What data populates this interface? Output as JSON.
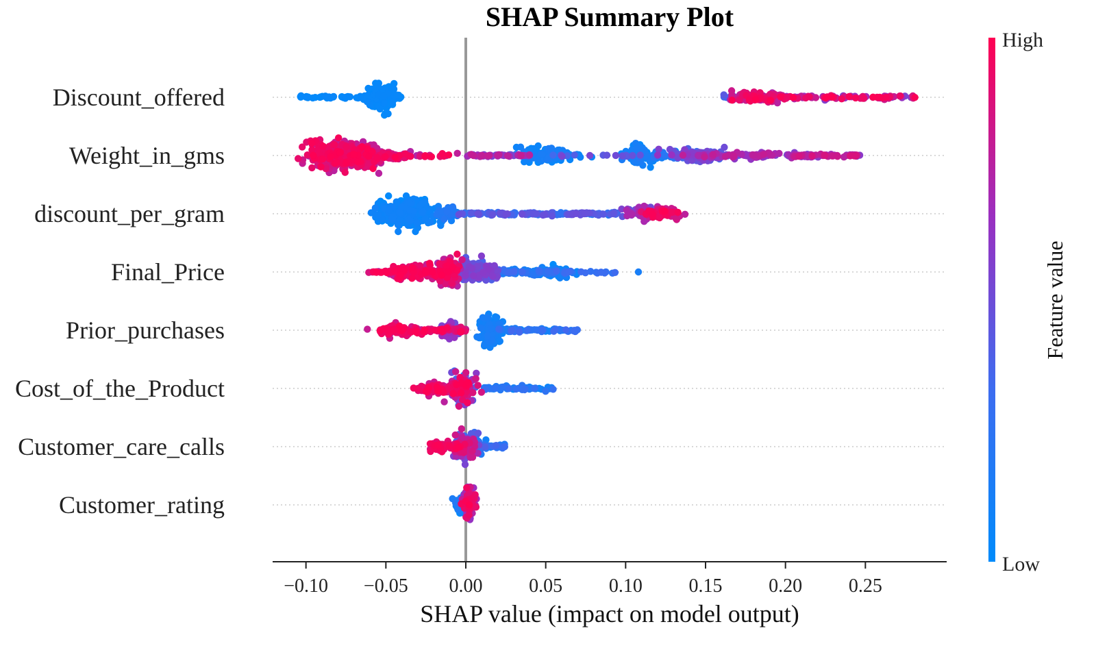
{
  "chart_data": {
    "type": "scatter",
    "subtype": "shap-beeswarm",
    "title": "SHAP Summary Plot",
    "xlabel": "SHAP value (impact on model output)",
    "xlim": [
      -0.12,
      0.3
    ],
    "xticks": [
      -0.1,
      -0.05,
      0.0,
      0.05,
      0.1,
      0.15,
      0.2,
      0.25
    ],
    "xtick_labels": [
      "−0.10",
      "−0.05",
      "0.00",
      "0.05",
      "0.10",
      "0.15",
      "0.20",
      "0.25"
    ],
    "reference_line_x": 0.0,
    "colorbar": {
      "title": "Feature value",
      "high_label": "High",
      "low_label": "Low",
      "high_color": "#ff0052",
      "low_color": "#008bfb"
    },
    "features": [
      {
        "name": "Discount_offered",
        "clusters": [
          {
            "x": -0.104,
            "x2": -0.058,
            "count": 45,
            "spread": 0.08,
            "fv": [
              0.0,
              0.05
            ]
          },
          {
            "x": -0.053,
            "sd": 0.005,
            "count": 130,
            "spread": 1.0,
            "fv": [
              0.0,
              0.05
            ]
          },
          {
            "x": -0.045,
            "x2": -0.04,
            "count": 8,
            "spread": 0.15,
            "fv": [
              0.0,
              0.05
            ]
          },
          {
            "x": 0.161,
            "x2": 0.174,
            "count": 10,
            "spread": 0.15,
            "fv": [
              0.25,
              0.45
            ]
          },
          {
            "x": 0.184,
            "sd": 0.008,
            "count": 110,
            "spread": 0.35,
            "fv": [
              0.7,
              1.0
            ]
          },
          {
            "x": 0.195,
            "x2": 0.281,
            "count": 90,
            "spread": 0.12,
            "fv": [
              0.55,
              1.0
            ]
          }
        ]
      },
      {
        "name": "Weight_in_gms",
        "clusters": [
          {
            "x": -0.1,
            "x2": -0.005,
            "count": 60,
            "spread": 0.15,
            "fv": [
              0.7,
              1.0
            ]
          },
          {
            "x": -0.083,
            "sd": 0.008,
            "count": 240,
            "spread": 1.0,
            "fv": [
              0.75,
              1.0
            ]
          },
          {
            "x": -0.066,
            "sd": 0.007,
            "count": 160,
            "spread": 0.85,
            "fv": [
              0.75,
              1.0
            ]
          },
          {
            "x": -0.048,
            "sd": 0.008,
            "count": 60,
            "spread": 0.35,
            "fv": [
              0.7,
              1.0
            ]
          },
          {
            "x": 0.0,
            "x2": 0.04,
            "count": 50,
            "spread": 0.08,
            "fv": [
              0.5,
              0.8
            ]
          },
          {
            "x": 0.045,
            "x2": 0.245,
            "count": 30,
            "spread": 0.1,
            "fv": [
              0.3,
              0.6
            ]
          },
          {
            "x": 0.05,
            "sd": 0.009,
            "count": 130,
            "spread": 0.5,
            "fv": [
              0.0,
              0.15
            ]
          },
          {
            "x": 0.108,
            "sd": 0.004,
            "count": 80,
            "spread": 0.75,
            "fv": [
              0.0,
              0.15
            ]
          },
          {
            "x": 0.125,
            "sd": 0.01,
            "count": 50,
            "spread": 0.3,
            "fv": [
              0.05,
              0.25
            ]
          },
          {
            "x": 0.145,
            "sd": 0.008,
            "count": 100,
            "spread": 0.5,
            "fv": [
              0.35,
              0.6
            ]
          },
          {
            "x": 0.178,
            "sd": 0.02,
            "count": 80,
            "spread": 0.2,
            "fv": [
              0.55,
              0.8
            ]
          },
          {
            "x": 0.205,
            "x2": 0.247,
            "count": 60,
            "spread": 0.1,
            "fv": [
              0.6,
              0.9
            ]
          }
        ]
      },
      {
        "name": "discount_per_gram",
        "clusters": [
          {
            "x": -0.055,
            "x2": -0.02,
            "count": 40,
            "spread": 0.2,
            "fv": [
              0.0,
              0.1
            ]
          },
          {
            "x": -0.038,
            "sd": 0.008,
            "count": 280,
            "spread": 1.0,
            "fv": [
              0.0,
              0.1
            ]
          },
          {
            "x": -0.012,
            "sd": 0.004,
            "count": 50,
            "spread": 0.5,
            "fv": [
              0.05,
              0.2
            ]
          },
          {
            "x": -0.005,
            "x2": 0.095,
            "count": 140,
            "spread": 0.1,
            "fv": [
              0.2,
              0.5
            ]
          },
          {
            "x": 0.11,
            "sd": 0.005,
            "count": 70,
            "spread": 0.55,
            "fv": [
              0.45,
              0.75
            ]
          },
          {
            "x": 0.122,
            "sd": 0.005,
            "count": 60,
            "spread": 0.45,
            "fv": [
              0.75,
              1.0
            ]
          }
        ]
      },
      {
        "name": "Final_Price",
        "clusters": [
          {
            "x": -0.061,
            "x2": -0.02,
            "count": 50,
            "spread": 0.12,
            "fv": [
              0.8,
              1.0
            ]
          },
          {
            "x": -0.035,
            "sd": 0.008,
            "count": 130,
            "spread": 0.45,
            "fv": [
              0.75,
              1.0
            ]
          },
          {
            "x": -0.012,
            "sd": 0.004,
            "count": 140,
            "spread": 0.85,
            "fv": [
              0.7,
              1.0
            ]
          },
          {
            "x": 0.007,
            "sd": 0.006,
            "count": 120,
            "spread": 0.7,
            "fv": [
              0.35,
              0.6
            ]
          },
          {
            "x": 0.02,
            "x2": 0.07,
            "count": 80,
            "spread": 0.2,
            "fv": [
              0.05,
              0.35
            ]
          },
          {
            "x": 0.053,
            "sd": 0.005,
            "count": 60,
            "spread": 0.35,
            "fv": [
              0.0,
              0.15
            ]
          },
          {
            "x": 0.07,
            "x2": 0.095,
            "count": 12,
            "spread": 0.08,
            "fv": [
              0.25,
              0.35
            ]
          },
          {
            "x": 0.108,
            "x2": 0.108,
            "count": 1,
            "spread": 0.0,
            "fv": [
              0.1,
              0.2
            ]
          }
        ]
      },
      {
        "name": "Prior_purchases",
        "clusters": [
          {
            "x": -0.048,
            "x2": 0.0,
            "count": 70,
            "spread": 0.2,
            "fv": [
              0.8,
              1.0
            ]
          },
          {
            "x": -0.044,
            "sd": 0.005,
            "count": 70,
            "spread": 0.45,
            "fv": [
              0.8,
              1.0
            ]
          },
          {
            "x": -0.011,
            "sd": 0.003,
            "count": 70,
            "spread": 0.5,
            "fv": [
              0.5,
              0.7
            ]
          },
          {
            "x": 0.015,
            "sd": 0.003,
            "count": 160,
            "spread": 1.0,
            "fv": [
              0.0,
              0.15
            ]
          },
          {
            "x": 0.02,
            "x2": 0.07,
            "count": 70,
            "spread": 0.12,
            "fv": [
              0.05,
              0.35
            ]
          }
        ]
      },
      {
        "name": "Cost_of_the_Product",
        "clusters": [
          {
            "x": -0.03,
            "x2": -0.005,
            "count": 50,
            "spread": 0.2,
            "fv": [
              0.75,
              1.0
            ]
          },
          {
            "x": -0.02,
            "sd": 0.005,
            "count": 60,
            "spread": 0.4,
            "fv": [
              0.8,
              1.0
            ]
          },
          {
            "x": -0.002,
            "sd": 0.004,
            "count": 140,
            "spread": 1.0,
            "fv": [
              0.2,
              1.0
            ]
          },
          {
            "x": 0.01,
            "x2": 0.055,
            "count": 60,
            "spread": 0.15,
            "fv": [
              0.0,
              0.3
            ]
          }
        ]
      },
      {
        "name": "Customer_care_calls",
        "clusters": [
          {
            "x": -0.023,
            "x2": 0.0,
            "count": 70,
            "spread": 0.35,
            "fv": [
              0.8,
              1.0
            ]
          },
          {
            "x": 0.0,
            "sd": 0.003,
            "count": 110,
            "spread": 1.0,
            "fv": [
              0.2,
              0.9
            ]
          },
          {
            "x": 0.007,
            "sd": 0.003,
            "count": 50,
            "spread": 0.55,
            "fv": [
              0.0,
              0.3
            ]
          },
          {
            "x": 0.01,
            "x2": 0.025,
            "count": 25,
            "spread": 0.12,
            "fv": [
              0.05,
              0.4
            ]
          }
        ]
      },
      {
        "name": "Customer_rating",
        "clusters": [
          {
            "x": -0.003,
            "sd": 0.002,
            "count": 70,
            "spread": 0.6,
            "fv": [
              0.0,
              0.2
            ]
          },
          {
            "x": 0.002,
            "sd": 0.002,
            "count": 90,
            "spread": 1.0,
            "fv": [
              0.6,
              1.0
            ]
          }
        ]
      }
    ]
  }
}
